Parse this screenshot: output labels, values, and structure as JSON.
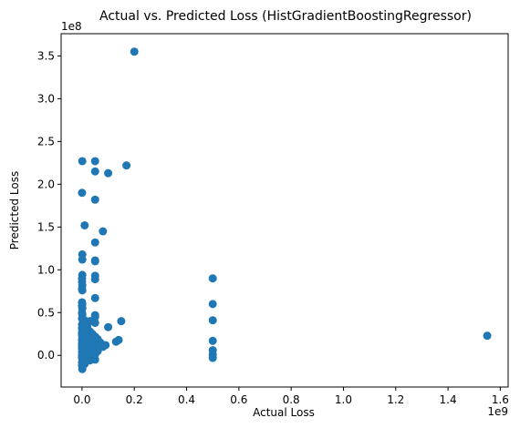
{
  "chart_data": {
    "type": "scatter",
    "title": "Actual vs. Predicted Loss (HistGradientBoostingRegressor)",
    "xlabel": "Actual Loss",
    "ylabel": "Predicted Loss",
    "x_offset_label": "1e9",
    "y_offset_label": "1e8",
    "x_scale": 1000000000.0,
    "y_scale": 100000000.0,
    "xlim": [
      -0.08,
      1.63
    ],
    "ylim": [
      -0.37,
      3.76
    ],
    "x_ticks": [
      "0.0",
      "0.2",
      "0.4",
      "0.6",
      "0.8",
      "1.0",
      "1.2",
      "1.4",
      "1.6"
    ],
    "y_ticks": [
      "0.0",
      "0.5",
      "1.0",
      "1.5",
      "2.0",
      "2.5",
      "3.0",
      "3.5"
    ],
    "grid": false,
    "marker_color": "#1f77b4",
    "points": [
      [
        0.001,
        2.27
      ],
      [
        0.05,
        2.27
      ],
      [
        0.05,
        2.15
      ],
      [
        0.1,
        2.13
      ],
      [
        0.17,
        2.22
      ],
      [
        0.2,
        3.55
      ],
      [
        0.0,
        1.9
      ],
      [
        0.05,
        1.82
      ],
      [
        0.01,
        1.52
      ],
      [
        0.08,
        1.45
      ],
      [
        0.05,
        1.32
      ],
      [
        0.001,
        1.18
      ],
      [
        0.001,
        1.12
      ],
      [
        0.05,
        1.11
      ],
      [
        0.05,
        1.1
      ],
      [
        0.001,
        0.94
      ],
      [
        0.0,
        0.9
      ],
      [
        0.05,
        0.93
      ],
      [
        0.05,
        0.89
      ],
      [
        0.0,
        0.86
      ],
      [
        0.001,
        0.82
      ],
      [
        0.0,
        0.78
      ],
      [
        0.001,
        0.76
      ],
      [
        0.05,
        0.67
      ],
      [
        0.0,
        0.62
      ],
      [
        0.001,
        0.6
      ],
      [
        0.0,
        0.58
      ],
      [
        0.001,
        0.55
      ],
      [
        0.0,
        0.5
      ],
      [
        0.001,
        0.48
      ],
      [
        0.05,
        0.47
      ],
      [
        0.05,
        0.45
      ],
      [
        0.0,
        0.43
      ],
      [
        0.01,
        0.41
      ],
      [
        0.03,
        0.4
      ],
      [
        0.05,
        0.38
      ],
      [
        0.0,
        0.36
      ],
      [
        0.02,
        0.34
      ],
      [
        0.1,
        0.33
      ],
      [
        0.15,
        0.4
      ],
      [
        0.0,
        0.32
      ],
      [
        0.001,
        0.3
      ],
      [
        0.02,
        0.29
      ],
      [
        0.03,
        0.28
      ],
      [
        0.0,
        0.27
      ],
      [
        0.01,
        0.26
      ],
      [
        0.04,
        0.25
      ],
      [
        0.0,
        0.24
      ],
      [
        0.02,
        0.23
      ],
      [
        0.05,
        0.22
      ],
      [
        0.001,
        0.21
      ],
      [
        0.03,
        0.2
      ],
      [
        0.06,
        0.19
      ],
      [
        0.0,
        0.18
      ],
      [
        0.01,
        0.17
      ],
      [
        0.04,
        0.16
      ],
      [
        0.07,
        0.15
      ],
      [
        0.0,
        0.14
      ],
      [
        0.02,
        0.13
      ],
      [
        0.05,
        0.12
      ],
      [
        0.0,
        0.11
      ],
      [
        0.01,
        0.1
      ],
      [
        0.03,
        0.09
      ],
      [
        0.08,
        0.1
      ],
      [
        0.0,
        0.08
      ],
      [
        0.02,
        0.07
      ],
      [
        0.04,
        0.06
      ],
      [
        0.06,
        0.05
      ],
      [
        0.0,
        0.04
      ],
      [
        0.01,
        0.03
      ],
      [
        0.03,
        0.02
      ],
      [
        0.05,
        0.01
      ],
      [
        0.0,
        0.0
      ],
      [
        0.02,
        -0.01
      ],
      [
        0.04,
        -0.02
      ],
      [
        0.0,
        -0.03
      ],
      [
        0.01,
        -0.05
      ],
      [
        0.03,
        -0.06
      ],
      [
        0.05,
        -0.05
      ],
      [
        0.0,
        -0.08
      ],
      [
        0.01,
        -0.1
      ],
      [
        0.0,
        -0.12
      ],
      [
        0.001,
        -0.16
      ],
      [
        0.13,
        0.16
      ],
      [
        0.14,
        0.18
      ],
      [
        0.09,
        0.12
      ],
      [
        0.5,
        0.9
      ],
      [
        0.5,
        0.6
      ],
      [
        0.5,
        0.41
      ],
      [
        0.5,
        0.17
      ],
      [
        0.5,
        0.06
      ],
      [
        0.5,
        0.01
      ],
      [
        0.5,
        -0.03
      ],
      [
        1.55,
        0.23
      ]
    ]
  }
}
